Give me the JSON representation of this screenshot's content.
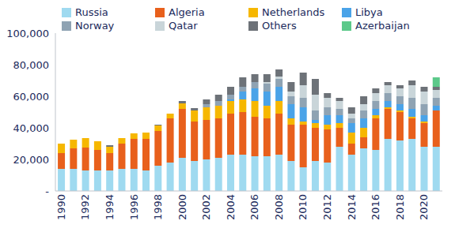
{
  "chart_data": {
    "type": "bar",
    "stacked": true,
    "grid": false,
    "legend": "top",
    "categories": [
      "1990",
      null,
      "1992",
      null,
      "1994",
      null,
      "1996",
      null,
      "1998",
      null,
      "2000",
      null,
      "2002",
      null,
      "2004",
      null,
      "2006",
      null,
      "2008",
      null,
      "2010",
      null,
      "2012",
      null,
      "2014",
      null,
      "2016",
      null,
      "2018",
      null,
      "2020",
      null
    ],
    "ylim": [
      0,
      100000
    ],
    "yticks": [
      {
        "value": 0,
        "label": "-"
      },
      {
        "value": 20000,
        "label": "20,000"
      },
      {
        "value": 40000,
        "label": "40,000"
      },
      {
        "value": 60000,
        "label": "60,000"
      },
      {
        "value": 80000,
        "label": "80,000"
      },
      {
        "value": 100000,
        "label": "100,000"
      }
    ],
    "series": [
      {
        "name": "Russia",
        "color": "#9fdaf0",
        "values": [
          14000,
          14000,
          13000,
          13000,
          13000,
          14000,
          14000,
          13000,
          16000,
          18000,
          21000,
          19000,
          20000,
          21000,
          23000,
          23000,
          22000,
          22000,
          23000,
          19000,
          15000,
          19000,
          18000,
          28000,
          23000,
          27000,
          26000,
          33000,
          32000,
          33000,
          28000,
          28000
        ]
      },
      {
        "name": "Algeria",
        "color": "#e8601c",
        "values": [
          10000,
          13000,
          14500,
          13000,
          11000,
          16000,
          19000,
          20000,
          22000,
          28000,
          31000,
          25000,
          25000,
          25000,
          26000,
          27000,
          25000,
          24000,
          26000,
          23000,
          27000,
          21000,
          21000,
          12000,
          7000,
          7000,
          20000,
          19000,
          18000,
          13000,
          15000,
          23000
        ]
      },
      {
        "name": "Netherlands",
        "color": "#f6b700",
        "values": [
          6000,
          5500,
          6000,
          5500,
          4000,
          3500,
          3500,
          4000,
          3500,
          3000,
          3500,
          7000,
          8000,
          8000,
          8000,
          8000,
          10000,
          8000,
          8000,
          4000,
          2000,
          3000,
          3000,
          3000,
          7000,
          6000,
          2000,
          1000,
          1000,
          1000,
          1000,
          0
        ]
      },
      {
        "name": "Libya",
        "color": "#4aa3e8",
        "values": [
          0,
          0,
          0,
          0,
          0,
          0,
          0,
          0,
          0,
          0,
          0,
          0,
          0,
          0,
          1000,
          5000,
          8000,
          9000,
          9000,
          9000,
          9000,
          2000,
          6000,
          5000,
          6000,
          6000,
          4000,
          4000,
          4000,
          5000,
          4000,
          3000
        ]
      },
      {
        "name": "Norway",
        "color": "#8fa3b3",
        "values": [
          0,
          0,
          0,
          0,
          0,
          0,
          0,
          0,
          0,
          0,
          0,
          0,
          2000,
          3000,
          3000,
          3000,
          4000,
          5000,
          5000,
          5000,
          6000,
          6000,
          5000,
          4000,
          3000,
          5000,
          5000,
          5000,
          5000,
          7000,
          7000,
          5000
        ]
      },
      {
        "name": "Qatar",
        "color": "#c9d5d9",
        "values": [
          0,
          0,
          0,
          0,
          0,
          0,
          0,
          0,
          0,
          0,
          0,
          0,
          0,
          0,
          0,
          0,
          0,
          1000,
          1500,
          3000,
          8000,
          10000,
          6000,
          5000,
          3000,
          4000,
          5000,
          5000,
          5000,
          8000,
          8000,
          5000
        ]
      },
      {
        "name": "Others",
        "color": "#6d7278",
        "values": [
          0,
          0,
          0,
          0,
          1000,
          0,
          0,
          0,
          500,
          0,
          1500,
          1500,
          3000,
          4000,
          5000,
          6000,
          5000,
          5000,
          4500,
          6000,
          8000,
          10000,
          3000,
          2000,
          4000,
          5000,
          3000,
          2000,
          2000,
          3000,
          3000,
          2000
        ]
      },
      {
        "name": "Azerbaijan",
        "color": "#5cc98a",
        "values": [
          0,
          0,
          0,
          0,
          0,
          0,
          0,
          0,
          0,
          0,
          0,
          0,
          0,
          0,
          0,
          0,
          0,
          0,
          0,
          0,
          0,
          0,
          0,
          0,
          0,
          0,
          0,
          0,
          0,
          0,
          0,
          6000
        ]
      }
    ]
  }
}
